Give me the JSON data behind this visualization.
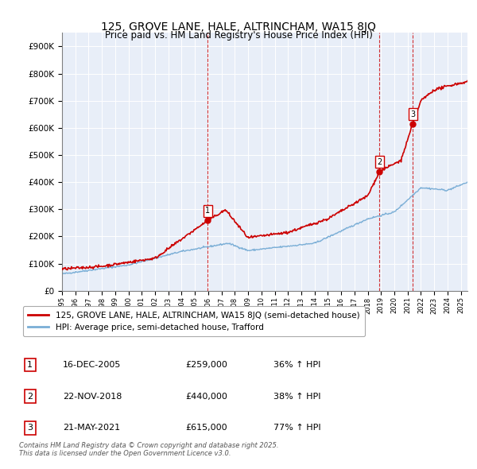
{
  "title": "125, GROVE LANE, HALE, ALTRINCHAM, WA15 8JQ",
  "subtitle": "Price paid vs. HM Land Registry's House Price Index (HPI)",
  "ylim": [
    0,
    950000
  ],
  "yticks": [
    0,
    100000,
    200000,
    300000,
    400000,
    500000,
    600000,
    700000,
    800000,
    900000
  ],
  "ytick_labels": [
    "£0",
    "£100K",
    "£200K",
    "£300K",
    "£400K",
    "£500K",
    "£600K",
    "£700K",
    "£800K",
    "£900K"
  ],
  "price_color": "#cc0000",
  "hpi_color": "#7aaed6",
  "vline_color": "#cc0000",
  "transactions": [
    {
      "date_num": 2005.96,
      "price": 259000,
      "label": "1"
    },
    {
      "date_num": 2018.89,
      "price": 440000,
      "label": "2"
    },
    {
      "date_num": 2021.39,
      "price": 615000,
      "label": "3"
    }
  ],
  "legend_entry1": "125, GROVE LANE, HALE, ALTRINCHAM, WA15 8JQ (semi-detached house)",
  "legend_entry2": "HPI: Average price, semi-detached house, Trafford",
  "table_rows": [
    {
      "num": "1",
      "date": "16-DEC-2005",
      "price": "£259,000",
      "change": "36% ↑ HPI"
    },
    {
      "num": "2",
      "date": "22-NOV-2018",
      "price": "£440,000",
      "change": "38% ↑ HPI"
    },
    {
      "num": "3",
      "date": "21-MAY-2021",
      "price": "£615,000",
      "change": "77% ↑ HPI"
    }
  ],
  "footer": "Contains HM Land Registry data © Crown copyright and database right 2025.\nThis data is licensed under the Open Government Licence v3.0.",
  "background_color": "#e8eef8",
  "xlim_left": 1995,
  "xlim_right": 2025.5
}
